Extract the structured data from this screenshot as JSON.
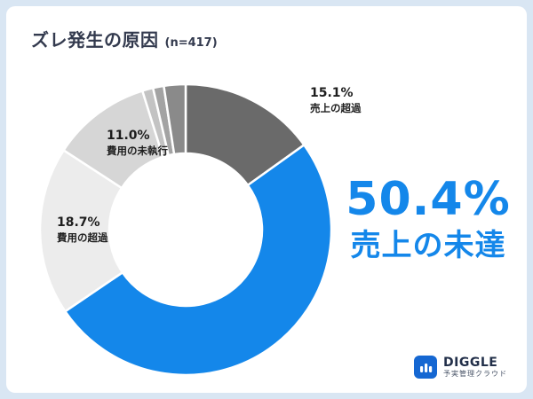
{
  "header": {
    "title": "ズレ発生の原因",
    "sample_size": "(n=417)"
  },
  "chart_data": {
    "type": "pie",
    "donut": true,
    "title": "ズレ発生の原因",
    "subtitle": "(n=417)",
    "legend_position": "none",
    "segments": [
      {
        "label": "売上の超過",
        "value": 15.1,
        "color": "#6a6a6a"
      },
      {
        "label": "売上の未達",
        "value": 50.4,
        "color": "#1487ea"
      },
      {
        "label": "費用の超過",
        "value": 18.7,
        "color": "#ececec"
      },
      {
        "label": "費用の未執行",
        "value": 11.0,
        "color": "#d6d6d6"
      },
      {
        "label": "",
        "value": 1.2,
        "color": "#c3c3c3"
      },
      {
        "label": "",
        "value": 1.2,
        "color": "#a3a3a3"
      },
      {
        "label": "",
        "value": 2.4,
        "color": "#8a8a8a"
      }
    ]
  },
  "annotations": [
    {
      "percent": "15.1%",
      "label": "売上の超過"
    },
    {
      "percent": "11.0%",
      "label": "費用の未執行"
    },
    {
      "percent": "18.7%",
      "label": "費用の超過"
    }
  ],
  "highlight": {
    "percent": "50.4%",
    "label": "売上の未達",
    "color": "#1487ea"
  },
  "logo": {
    "name": "DIGGLE",
    "tagline": "予実管理クラウド",
    "brand_color": "#1567d2"
  }
}
